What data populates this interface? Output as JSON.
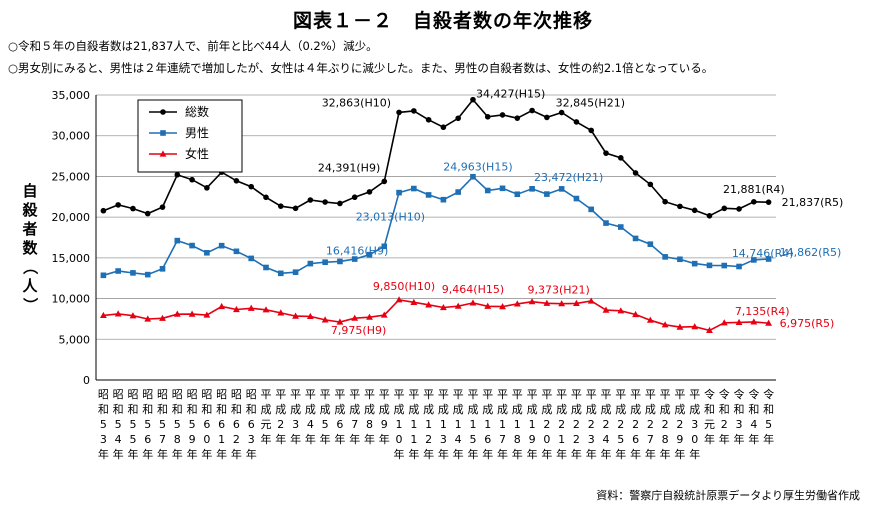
{
  "page": {
    "title": "図表１－２　自殺者数の年次推移",
    "notes": [
      "○令和５年の自殺者数は21,837人で、前年と比べ44人（0.2%）減少。",
      "○男女別にみると、男性は２年連続で増加したが、女性は４年ぶりに減少した。また、男性の自殺者数は、女性の約2.1倍となっている。"
    ],
    "source": "資料：警察庁自殺統計原票データより厚生労働省作成"
  },
  "chart_data": {
    "type": "line",
    "title": "図表１－２　自殺者数の年次推移",
    "ylabel": "自殺者数（人）",
    "xlabel": "",
    "ylim": [
      0,
      35000
    ],
    "yticks": [
      "0",
      "5,000",
      "10,000",
      "15,000",
      "20,000",
      "25,000",
      "30,000",
      "35,000"
    ],
    "grid": "horizontal",
    "legend": "top-left",
    "categories": [
      "昭和53年",
      "昭和54年",
      "昭和55年",
      "昭和56年",
      "昭和57年",
      "昭和58年",
      "昭和59年",
      "昭和60年",
      "昭和61年",
      "昭和62年",
      "昭和63年",
      "平成元年",
      "平成2年",
      "平成3年",
      "平成4年",
      "平成5年",
      "平成6年",
      "平成7年",
      "平成8年",
      "平成9年",
      "平成10年",
      "平成11年",
      "平成12年",
      "平成13年",
      "平成14年",
      "平成15年",
      "平成16年",
      "平成17年",
      "平成18年",
      "平成19年",
      "平成20年",
      "平成21年",
      "平成22年",
      "平成23年",
      "平成24年",
      "平成25年",
      "平成26年",
      "平成27年",
      "平成28年",
      "平成29年",
      "平成30年",
      "令和元年",
      "令和2年",
      "令和3年",
      "令和4年",
      "令和5年"
    ],
    "tick_labels": [
      [
        "昭",
        "和",
        "5",
        "3",
        "年"
      ],
      [
        "昭",
        "和",
        "5",
        "4",
        "年"
      ],
      [
        "昭",
        "和",
        "5",
        "5",
        "年"
      ],
      [
        "昭",
        "和",
        "5",
        "6",
        "年"
      ],
      [
        "昭",
        "和",
        "5",
        "7",
        "年"
      ],
      [
        "昭",
        "和",
        "5",
        "8",
        "年"
      ],
      [
        "昭",
        "和",
        "5",
        "9",
        "年"
      ],
      [
        "昭",
        "和",
        "6",
        "0",
        "年"
      ],
      [
        "昭",
        "和",
        "6",
        "1",
        "年"
      ],
      [
        "昭",
        "和",
        "6",
        "2",
        "年"
      ],
      [
        "昭",
        "和",
        "6",
        "3",
        "年"
      ],
      [
        "平",
        "成",
        "元",
        "年"
      ],
      [
        "平",
        "成",
        "2",
        "年"
      ],
      [
        "平",
        "成",
        "3",
        "年"
      ],
      [
        "平",
        "成",
        "4",
        "年"
      ],
      [
        "平",
        "成",
        "5",
        "年"
      ],
      [
        "平",
        "成",
        "6",
        "年"
      ],
      [
        "平",
        "成",
        "7",
        "年"
      ],
      [
        "平",
        "成",
        "8",
        "年"
      ],
      [
        "平",
        "成",
        "9",
        "年"
      ],
      [
        "平",
        "成",
        "1",
        "0",
        "年"
      ],
      [
        "平",
        "成",
        "1",
        "1",
        "年"
      ],
      [
        "平",
        "成",
        "1",
        "2",
        "年"
      ],
      [
        "平",
        "成",
        "1",
        "3",
        "年"
      ],
      [
        "平",
        "成",
        "1",
        "4",
        "年"
      ],
      [
        "平",
        "成",
        "1",
        "5",
        "年"
      ],
      [
        "平",
        "成",
        "1",
        "6",
        "年"
      ],
      [
        "平",
        "成",
        "1",
        "7",
        "年"
      ],
      [
        "平",
        "成",
        "1",
        "8",
        "年"
      ],
      [
        "平",
        "成",
        "1",
        "9",
        "年"
      ],
      [
        "平",
        "成",
        "2",
        "0",
        "年"
      ],
      [
        "平",
        "成",
        "2",
        "1",
        "年"
      ],
      [
        "平",
        "成",
        "2",
        "2",
        "年"
      ],
      [
        "平",
        "成",
        "2",
        "3",
        "年"
      ],
      [
        "平",
        "成",
        "2",
        "4",
        "年"
      ],
      [
        "平",
        "成",
        "2",
        "5",
        "年"
      ],
      [
        "平",
        "成",
        "2",
        "6",
        "年"
      ],
      [
        "平",
        "成",
        "2",
        "7",
        "年"
      ],
      [
        "平",
        "成",
        "2",
        "8",
        "年"
      ],
      [
        "平",
        "成",
        "2",
        "9",
        "年"
      ],
      [
        "平",
        "成",
        "3",
        "0",
        "年"
      ],
      [
        "令",
        "和",
        "元",
        "年"
      ],
      [
        "令",
        "和",
        "2",
        "年"
      ],
      [
        "令",
        "和",
        "3",
        "年"
      ],
      [
        "令",
        "和",
        "4",
        "年"
      ],
      [
        "令",
        "和",
        "5",
        "年"
      ]
    ],
    "series": [
      {
        "name": "総数",
        "color": "#000000",
        "marker": "circle",
        "values": [
          20788,
          21503,
          21048,
          20434,
          21228,
          25202,
          24596,
          23599,
          25524,
          24460,
          23742,
          22436,
          21346,
          21084,
          22104,
          21851,
          21679,
          22445,
          23104,
          24391,
          32863,
          33048,
          31957,
          31042,
          32143,
          34427,
          32325,
          32552,
          32155,
          33093,
          32249,
          32845,
          31690,
          30651,
          27858,
          27283,
          25427,
          24025,
          21897,
          21321,
          20840,
          20169,
          21081,
          21007,
          21881,
          21837
        ]
      },
      {
        "name": "男性",
        "color": "#1f6fb5",
        "marker": "square",
        "values": [
          12859,
          13386,
          13155,
          12942,
          13654,
          17116,
          16508,
          15624,
          16497,
          15802,
          14934,
          13818,
          13102,
          13242,
          14296,
          14468,
          14560,
          14853,
          15393,
          16416,
          23013,
          23512,
          22727,
          22144,
          23080,
          24963,
          23272,
          23540,
          22813,
          23478,
          22831,
          23472,
          22283,
          20955,
          19273,
          18787,
          17386,
          16681,
          15121,
          14826,
          14290,
          14078,
          14055,
          13939,
          14746,
          14862
        ]
      },
      {
        "name": "女性",
        "color": "#e60012",
        "marker": "triangle",
        "values": [
          7929,
          8117,
          7893,
          7492,
          7574,
          8086,
          8088,
          7975,
          9027,
          8658,
          8808,
          8618,
          8244,
          7842,
          7808,
          7383,
          7119,
          7592,
          7711,
          7975,
          9850,
          9536,
          9230,
          8898,
          9063,
          9464,
          9053,
          9012,
          9342,
          9615,
          9418,
          9373,
          9407,
          9696,
          8585,
          8496,
          8041,
          7344,
          6776,
          6495,
          6550,
          6091,
          7026,
          7068,
          7135,
          6975
        ]
      }
    ],
    "annotations": [
      {
        "series": "総数",
        "category": "平成9年",
        "text": "24,391(H9)"
      },
      {
        "series": "総数",
        "category": "平成10年",
        "text": "32,863(H10)"
      },
      {
        "series": "総数",
        "category": "平成15年",
        "text": "34,427(H15)"
      },
      {
        "series": "総数",
        "category": "平成21年",
        "text": "32,845(H21)"
      },
      {
        "series": "総数",
        "category": "令和4年",
        "text": "21,881(R4)"
      },
      {
        "series": "総数",
        "category": "令和5年",
        "text": "21,837(R5)"
      },
      {
        "series": "男性",
        "category": "平成9年",
        "text": "16,416(H9)"
      },
      {
        "series": "男性",
        "category": "平成10年",
        "text": "23,013(H10)"
      },
      {
        "series": "男性",
        "category": "平成15年",
        "text": "24,963(H15)"
      },
      {
        "series": "男性",
        "category": "平成21年",
        "text": "23,472(H21)"
      },
      {
        "series": "男性",
        "category": "令和4年",
        "text": "14,746(R4)"
      },
      {
        "series": "男性",
        "category": "令和5年",
        "text": "14,862(R5)"
      },
      {
        "series": "女性",
        "category": "平成9年",
        "text": "7,975(H9)"
      },
      {
        "series": "女性",
        "category": "平成10年",
        "text": "9,850(H10)"
      },
      {
        "series": "女性",
        "category": "平成15年",
        "text": "9,464(H15)"
      },
      {
        "series": "女性",
        "category": "平成21年",
        "text": "9,373(H21)"
      },
      {
        "series": "女性",
        "category": "令和4年",
        "text": "7,135(R4)"
      },
      {
        "series": "女性",
        "category": "令和5年",
        "text": "6,975(R5)"
      }
    ]
  }
}
